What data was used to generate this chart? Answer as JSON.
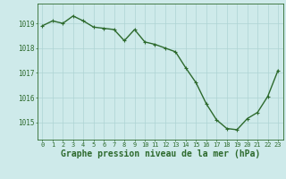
{
  "x": [
    0,
    1,
    2,
    3,
    4,
    5,
    6,
    7,
    8,
    9,
    10,
    11,
    12,
    13,
    14,
    15,
    16,
    17,
    18,
    19,
    20,
    21,
    22,
    23
  ],
  "y": [
    1018.9,
    1019.1,
    1019.0,
    1019.3,
    1019.1,
    1018.85,
    1018.8,
    1018.75,
    1018.3,
    1018.75,
    1018.25,
    1018.15,
    1018.0,
    1017.85,
    1017.2,
    1016.6,
    1015.75,
    1015.1,
    1014.75,
    1014.7,
    1015.15,
    1015.4,
    1016.05,
    1017.1
  ],
  "line_color": "#2d6a2d",
  "marker": "+",
  "marker_size": 3,
  "bg_color": "#ceeaea",
  "grid_color": "#aed4d4",
  "tick_color": "#2d6a2d",
  "xlabel": "Graphe pression niveau de la mer (hPa)",
  "xlabel_fontsize": 7,
  "ylabel_ticks": [
    1015,
    1016,
    1017,
    1018,
    1019
  ],
  "xtick_labels": [
    "0",
    "1",
    "2",
    "3",
    "4",
    "5",
    "6",
    "7",
    "8",
    "9",
    "10",
    "11",
    "12",
    "13",
    "14",
    "15",
    "16",
    "17",
    "18",
    "19",
    "20",
    "21",
    "22",
    "23"
  ],
  "ylim": [
    1014.3,
    1019.8
  ],
  "xlim": [
    -0.5,
    23.5
  ],
  "line_width": 1.0
}
